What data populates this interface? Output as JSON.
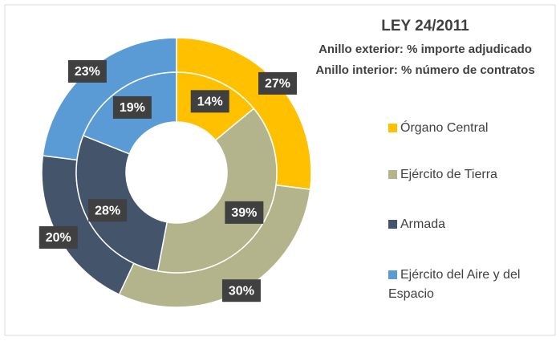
{
  "chart_data": {
    "type": "doughnut",
    "title": "LEY 24/2011",
    "subtitle": [
      "Anillo exterior: % importe adjudicado",
      "Anillo interior: % número de contratos"
    ],
    "categories": [
      "Órgano Central",
      "Ejército de Tierra",
      "Armada",
      "Ejército del Aire y del Espacio"
    ],
    "colors": [
      "#ffc000",
      "#b4b48c",
      "#44546a",
      "#5b9bd5"
    ],
    "series": [
      {
        "values": [
          27,
          30,
          20,
          23
        ],
        "value_labels": [
          "27%",
          "30%",
          "20%",
          "23%"
        ]
      },
      {
        "values": [
          14,
          39,
          28,
          19
        ],
        "value_labels": [
          "14%",
          "39%",
          "28%",
          "19%"
        ]
      }
    ],
    "legend": "right"
  }
}
